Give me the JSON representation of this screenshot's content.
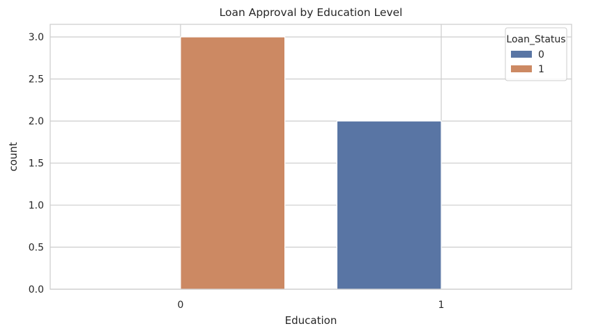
{
  "chart_data": {
    "type": "bar",
    "title": "Loan Approval by Education Level",
    "xlabel": "Education",
    "ylabel": "count",
    "categories": [
      "0",
      "1"
    ],
    "series": [
      {
        "name": "0",
        "color": "#5975a4",
        "values": [
          0,
          2
        ]
      },
      {
        "name": "1",
        "color": "#cc8963",
        "values": [
          3,
          0
        ]
      }
    ],
    "ylim": [
      0,
      3.15
    ],
    "yticks": [
      "0.0",
      "0.5",
      "1.0",
      "1.5",
      "2.0",
      "2.5",
      "3.0"
    ],
    "grid": true,
    "legend": {
      "title": "Loan_Status",
      "placement": "top-right"
    }
  }
}
